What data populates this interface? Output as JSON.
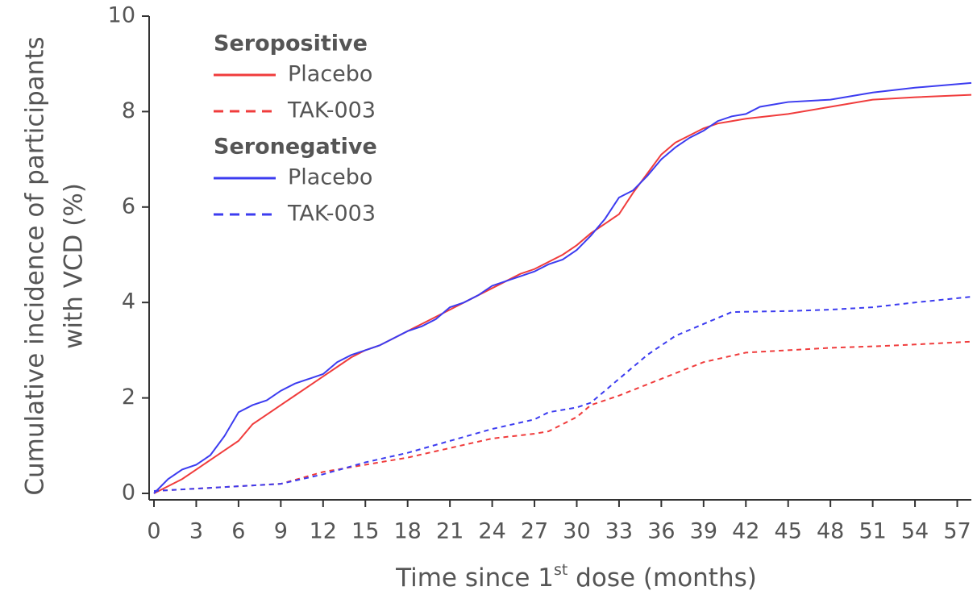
{
  "chart_data": {
    "type": "line",
    "y_label": [
      "Cumulative incidence of participants",
      "with VCD (%)"
    ],
    "x_label": [
      "Time since 1",
      "st",
      " dose (months)"
    ],
    "xlim": [
      0,
      58
    ],
    "xticks": [
      0,
      3,
      6,
      9,
      12,
      15,
      18,
      21,
      24,
      27,
      30,
      33,
      36,
      39,
      42,
      45,
      48,
      51,
      54,
      57
    ],
    "ylim": [
      0,
      10
    ],
    "yticks": [
      0,
      2,
      4,
      6,
      8,
      10
    ],
    "legend": "top-left",
    "groups": [
      "Seropositive",
      "Seronegative"
    ],
    "series": [
      {
        "name": "Placebo",
        "group": 0,
        "color": "#f03c3c",
        "dash": false,
        "x": [
          0,
          1,
          2,
          3,
          4,
          5,
          6,
          7,
          8,
          9,
          10,
          11,
          12,
          13,
          14,
          15,
          16,
          17,
          18,
          19,
          20,
          21,
          22,
          23,
          24,
          25,
          26,
          27,
          28,
          29,
          30,
          31,
          32,
          33,
          34,
          35,
          36,
          37,
          38,
          39,
          40,
          41,
          42,
          45,
          48,
          51,
          54,
          58
        ],
        "values": [
          0,
          0.15,
          0.3,
          0.5,
          0.7,
          0.9,
          1.1,
          1.45,
          1.65,
          1.85,
          2.05,
          2.25,
          2.45,
          2.65,
          2.85,
          3.0,
          3.1,
          3.25,
          3.4,
          3.55,
          3.7,
          3.85,
          4.0,
          4.15,
          4.3,
          4.45,
          4.6,
          4.7,
          4.85,
          5.0,
          5.2,
          5.45,
          5.65,
          5.85,
          6.3,
          6.7,
          7.1,
          7.35,
          7.5,
          7.65,
          7.75,
          7.8,
          7.85,
          7.95,
          8.1,
          8.25,
          8.3,
          8.35
        ]
      },
      {
        "name": "TAK-003",
        "group": 0,
        "color": "#f03c3c",
        "dash": true,
        "x": [
          0,
          3,
          6,
          9,
          12,
          15,
          18,
          21,
          24,
          27,
          28,
          30,
          31,
          33,
          36,
          39,
          42,
          45,
          48,
          51,
          54,
          58
        ],
        "values": [
          0.05,
          0.1,
          0.15,
          0.2,
          0.45,
          0.6,
          0.75,
          0.95,
          1.15,
          1.25,
          1.3,
          1.6,
          1.85,
          2.05,
          2.4,
          2.75,
          2.95,
          3.0,
          3.05,
          3.08,
          3.12,
          3.18
        ]
      },
      {
        "name": "Placebo",
        "group": 1,
        "color": "#3c3cf0",
        "dash": false,
        "x": [
          0,
          1,
          2,
          3,
          4,
          5,
          6,
          7,
          8,
          9,
          10,
          11,
          12,
          13,
          14,
          15,
          16,
          17,
          18,
          19,
          20,
          21,
          22,
          23,
          24,
          25,
          26,
          27,
          28,
          29,
          30,
          31,
          32,
          33,
          34,
          35,
          36,
          37,
          38,
          39,
          40,
          41,
          42,
          43,
          45,
          48,
          51,
          54,
          58
        ],
        "values": [
          0,
          0.3,
          0.5,
          0.6,
          0.8,
          1.2,
          1.7,
          1.85,
          1.95,
          2.15,
          2.3,
          2.4,
          2.5,
          2.75,
          2.9,
          3.0,
          3.1,
          3.25,
          3.4,
          3.5,
          3.65,
          3.9,
          4.0,
          4.15,
          4.35,
          4.45,
          4.55,
          4.65,
          4.8,
          4.9,
          5.1,
          5.4,
          5.75,
          6.2,
          6.35,
          6.65,
          7.0,
          7.25,
          7.45,
          7.6,
          7.8,
          7.9,
          7.95,
          8.1,
          8.2,
          8.25,
          8.4,
          8.5,
          8.6
        ]
      },
      {
        "name": "TAK-003",
        "group": 1,
        "color": "#3c3cf0",
        "dash": true,
        "x": [
          0,
          3,
          6,
          9,
          12,
          15,
          18,
          21,
          24,
          27,
          28,
          30,
          31,
          33,
          35,
          37,
          39,
          41,
          45,
          48,
          51,
          54,
          58
        ],
        "values": [
          0.05,
          0.1,
          0.15,
          0.2,
          0.4,
          0.65,
          0.85,
          1.1,
          1.35,
          1.55,
          1.7,
          1.8,
          1.9,
          2.4,
          2.9,
          3.3,
          3.55,
          3.8,
          3.82,
          3.85,
          3.9,
          4.0,
          4.12
        ]
      }
    ]
  }
}
